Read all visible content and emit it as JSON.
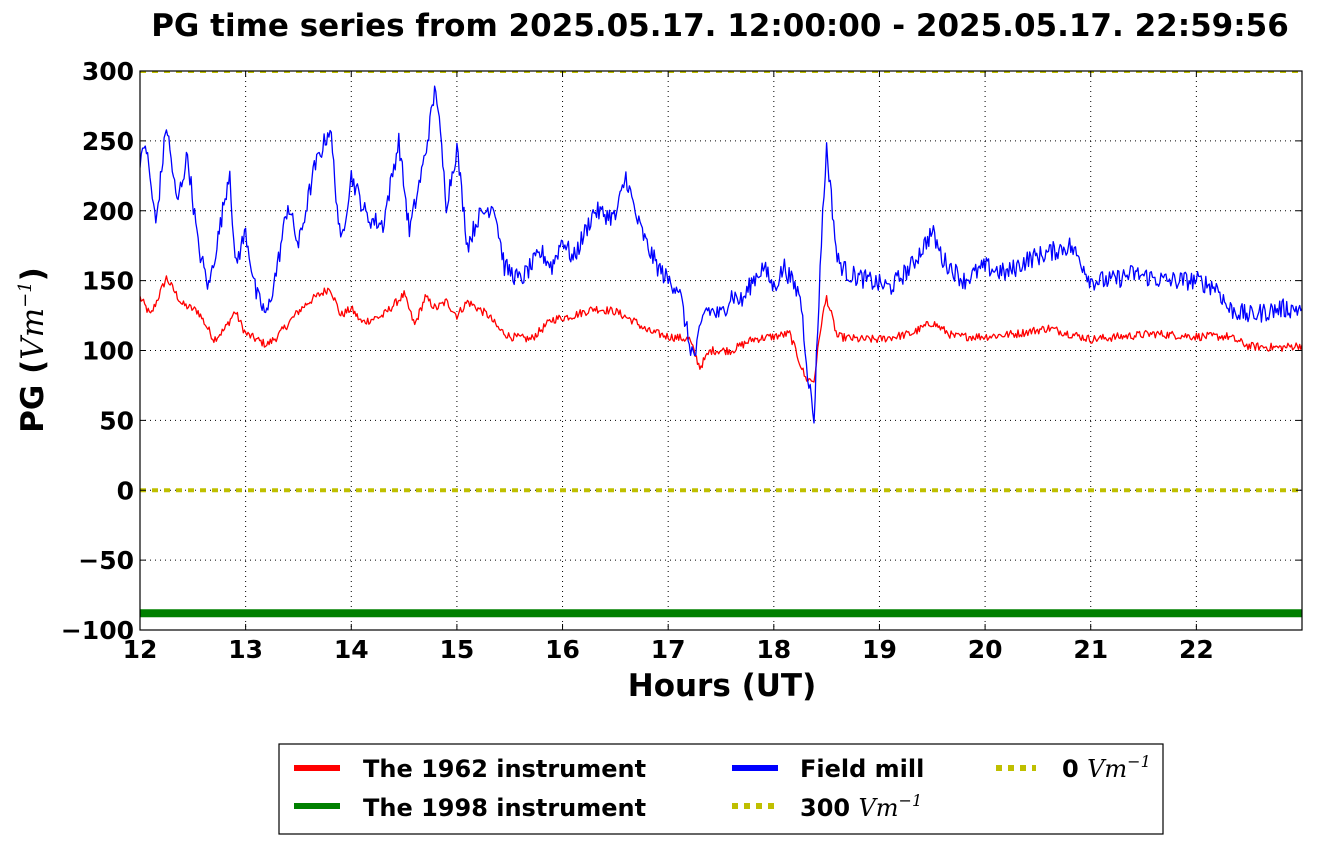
{
  "chart_data": {
    "type": "line",
    "title": "PG time series from 2025.05.17. 12:00:00 - 2025.05.17. 22:59:56",
    "xlabel": "Hours (UT)",
    "ylabel": {
      "text": "PG (",
      "unit": "Vm",
      "exp": "−1",
      "close": ")"
    },
    "xlim": [
      12,
      23
    ],
    "ylim": [
      -100,
      300
    ],
    "xticks": [
      12,
      13,
      14,
      15,
      16,
      17,
      18,
      19,
      20,
      21,
      22
    ],
    "xtick_labels": [
      "12",
      "13",
      "14",
      "15",
      "16",
      "17",
      "18",
      "19",
      "20",
      "21",
      "22"
    ],
    "yticks": [
      -100,
      -50,
      0,
      50,
      100,
      150,
      200,
      250,
      300
    ],
    "ytick_labels": [
      "−100",
      "−50",
      "0",
      "50",
      "100",
      "150",
      "200",
      "250",
      "300"
    ],
    "grid": true,
    "legend_placement": "below",
    "series": [
      {
        "name": "The 1962 instrument",
        "color": "#ff0000",
        "x": [
          12.0,
          12.1,
          12.25,
          12.4,
          12.55,
          12.7,
          12.8,
          12.9,
          13.0,
          13.1,
          13.2,
          13.3,
          13.5,
          13.6,
          13.8,
          13.9,
          14.0,
          14.1,
          14.3,
          14.5,
          14.6,
          14.7,
          14.8,
          14.9,
          15.0,
          15.1,
          15.3,
          15.4,
          15.5,
          15.7,
          15.9,
          16.1,
          16.3,
          16.5,
          16.7,
          16.8,
          17.0,
          17.2,
          17.3,
          17.4,
          17.6,
          17.8,
          18.0,
          18.15,
          18.3,
          18.38,
          18.45,
          18.5,
          18.6,
          18.8,
          19.0,
          19.3,
          19.5,
          19.7,
          20.0,
          20.3,
          20.6,
          20.8,
          21.0,
          21.3,
          21.6,
          22.0,
          22.3,
          22.5,
          22.8,
          23.0
        ],
        "values": [
          138,
          125,
          152,
          133,
          128,
          108,
          115,
          128,
          112,
          108,
          104,
          110,
          128,
          135,
          145,
          125,
          130,
          120,
          125,
          140,
          118,
          138,
          130,
          135,
          125,
          135,
          125,
          115,
          110,
          108,
          122,
          125,
          130,
          128,
          120,
          114,
          110,
          108,
          88,
          100,
          100,
          108,
          110,
          112,
          80,
          78,
          120,
          138,
          110,
          108,
          108,
          112,
          120,
          110,
          110,
          112,
          116,
          112,
          108,
          110,
          112,
          110,
          110,
          103,
          102,
          104
        ]
      },
      {
        "name": "The 1998 instrument",
        "color": "#008000",
        "x": [
          12.0,
          23.0
        ],
        "values": [
          -88,
          -88
        ]
      },
      {
        "name": "Field mill",
        "color": "#0000ff",
        "x": [
          12.0,
          12.05,
          12.15,
          12.25,
          12.35,
          12.45,
          12.55,
          12.65,
          12.75,
          12.85,
          12.9,
          13.0,
          13.1,
          13.2,
          13.3,
          13.4,
          13.5,
          13.65,
          13.8,
          13.9,
          14.0,
          14.15,
          14.3,
          14.45,
          14.55,
          14.7,
          14.8,
          14.9,
          15.0,
          15.1,
          15.2,
          15.35,
          15.45,
          15.6,
          15.8,
          15.9,
          16.0,
          16.1,
          16.3,
          16.5,
          16.6,
          16.7,
          16.8,
          16.9,
          17.0,
          17.1,
          17.2,
          17.25,
          17.35,
          17.5,
          17.6,
          17.7,
          17.8,
          17.9,
          18.0,
          18.1,
          18.2,
          18.25,
          18.32,
          18.38,
          18.45,
          18.5,
          18.6,
          18.7,
          18.9,
          19.1,
          19.3,
          19.5,
          19.6,
          19.8,
          20.0,
          20.2,
          20.4,
          20.6,
          20.8,
          20.9,
          21.0,
          21.2,
          21.4,
          21.7,
          22.0,
          22.2,
          22.3,
          22.5,
          22.8,
          23.0
        ],
        "values": [
          230,
          250,
          190,
          262,
          205,
          240,
          175,
          145,
          185,
          230,
          160,
          185,
          140,
          125,
          160,
          205,
          175,
          230,
          260,
          175,
          225,
          195,
          190,
          250,
          185,
          240,
          290,
          205,
          245,
          175,
          195,
          205,
          160,
          150,
          170,
          160,
          180,
          165,
          200,
          195,
          225,
          195,
          175,
          160,
          150,
          145,
          105,
          95,
          130,
          125,
          140,
          135,
          150,
          160,
          145,
          160,
          145,
          140,
          85,
          50,
          180,
          245,
          165,
          155,
          150,
          145,
          160,
          185,
          165,
          150,
          160,
          155,
          165,
          170,
          175,
          165,
          150,
          150,
          155,
          150,
          150,
          145,
          130,
          125,
          130,
          130
        ]
      },
      {
        "name": "300 Vm−1",
        "color": "#bfbf00",
        "x": [
          12.0,
          23.0
        ],
        "values": [
          300,
          300
        ]
      },
      {
        "name": "0 Vm−1",
        "color": "#bfbf00",
        "x": [
          12.0,
          23.0
        ],
        "values": [
          0,
          0
        ]
      }
    ],
    "legend": [
      {
        "label": "The 1962 instrument",
        "color": "#ff0000",
        "style": "solid"
      },
      {
        "label": "The 1998 instrument",
        "color": "#008000",
        "style": "solid"
      },
      {
        "label": "Field mill",
        "color": "#0000ff",
        "style": "solid"
      },
      {
        "label": "300 ",
        "unit": "Vm",
        "exp": "−1",
        "color": "#bfbf00",
        "style": "dotted"
      },
      {
        "label": "0 ",
        "unit": "Vm",
        "exp": "−1",
        "color": "#bfbf00",
        "style": "dotted"
      }
    ]
  }
}
